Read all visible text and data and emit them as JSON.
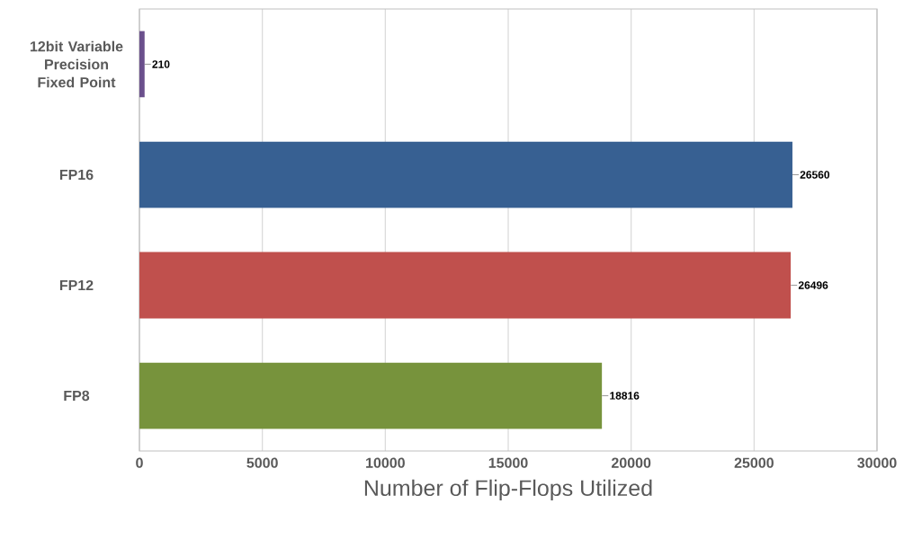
{
  "chart_data": {
    "type": "bar",
    "orientation": "horizontal",
    "xlabel": "Number of Flip-Flops Utilized",
    "categories": [
      "12bit Variable Precision Fixed Point",
      "FP16",
      "FP12",
      "FP8"
    ],
    "values": [
      210,
      26560,
      26496,
      18816
    ],
    "colors": [
      "#6a4f8c",
      "#376092",
      "#c0504d",
      "#77933c"
    ],
    "xlim": [
      0,
      30000
    ],
    "xticks": [
      0,
      5000,
      10000,
      15000,
      20000,
      25000,
      30000
    ],
    "grid": "x",
    "data_labels": true
  }
}
